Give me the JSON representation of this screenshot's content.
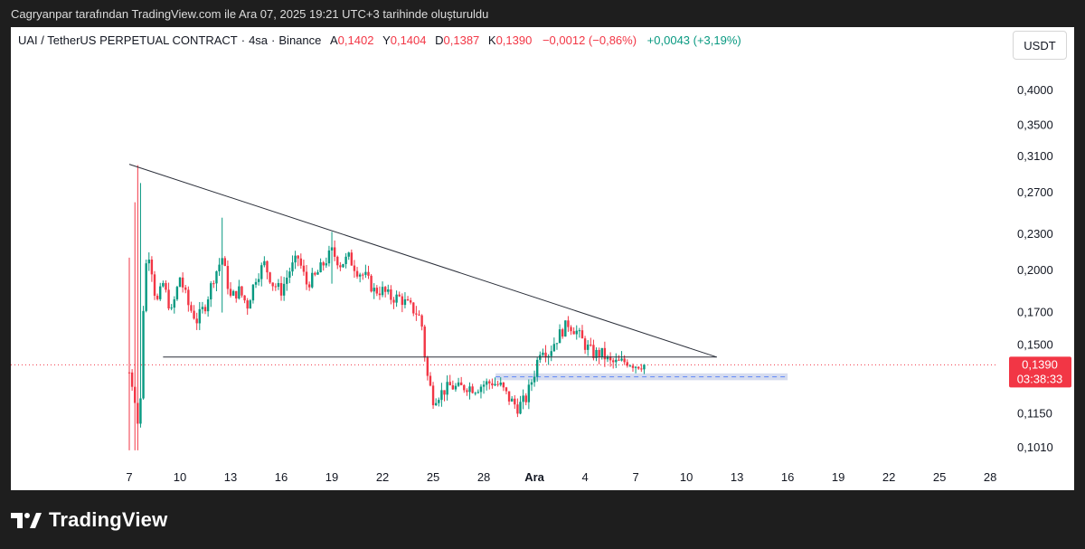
{
  "caption": "Cagryanpar tarafından TradingView.com ile Ara 07, 2025 19:21 UTC+3 tarihinde oluşturuldu",
  "legend": {
    "symbol": "UAI / TetherUS PERPETUAL CONTRACT",
    "interval": "4sa",
    "exchange": "Binance",
    "o_label": "A",
    "o_value": "0,1402",
    "h_label": "Y",
    "h_value": "0,1404",
    "l_label": "D",
    "l_value": "0,1387",
    "c_label": "K",
    "c_value": "0,1390",
    "change": "−0,0012 (−0,86%)",
    "change2": "+0,0043 (+3,19%)"
  },
  "currency_button": "USDT",
  "price_tag": {
    "price": "0,1390",
    "countdown": "03:38:33"
  },
  "brand": "TradingView",
  "colors": {
    "up": "#089981",
    "down": "#f23645",
    "trendline": "#2a2e39",
    "zone": "#c5cde8"
  },
  "chart_data": {
    "type": "candlestick",
    "y_axis": {
      "scale": "log",
      "tick_labels": [
        "0,4000",
        "0,3500",
        "0,3100",
        "0,2700",
        "0,2300",
        "0,2000",
        "0,1700",
        "0,1500",
        "0,1150",
        "0,1010"
      ],
      "tick_values": [
        0.4,
        0.35,
        0.31,
        0.27,
        0.23,
        0.2,
        0.17,
        0.15,
        0.115,
        0.101
      ]
    },
    "x_axis": {
      "tick_labels": [
        "7",
        "10",
        "13",
        "16",
        "19",
        "22",
        "25",
        "28",
        "Ara",
        "4",
        "7",
        "10",
        "13",
        "16",
        "19",
        "22",
        "25",
        "28"
      ],
      "tick_days": [
        7,
        10,
        13,
        16,
        19,
        22,
        25,
        28,
        31,
        34,
        37,
        40,
        43,
        46,
        49,
        52,
        55,
        58
      ]
    },
    "last_price": 0.139,
    "descending_trendline": {
      "from": {
        "day": 7,
        "price": 0.301
      },
      "to": {
        "day": 41.8,
        "price": 0.1432
      }
    },
    "support_line": {
      "from_day": 9,
      "to_day": 41.8,
      "price": 0.1432
    },
    "support_zone": {
      "from_day": 28.7,
      "to_day": 46,
      "low": 0.131,
      "high": 0.1345
    },
    "zone_dashed_price": 0.1327
  }
}
